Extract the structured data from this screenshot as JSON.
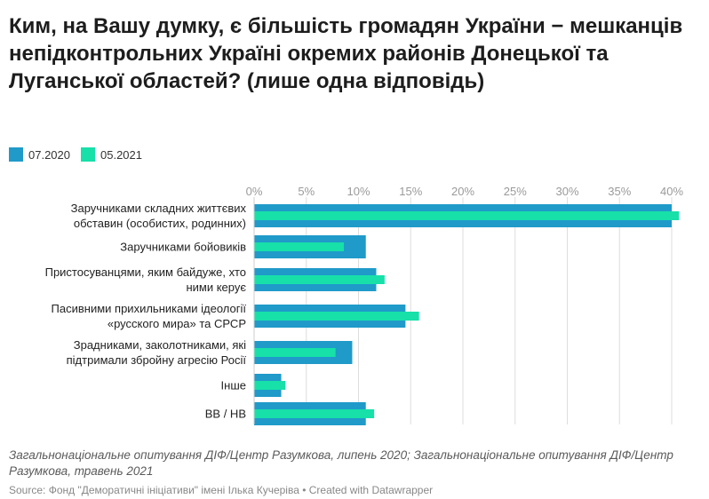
{
  "colors": {
    "series1": "#1f9ac9",
    "series2": "#17e0a9",
    "grid": "#dddddd"
  },
  "footer": {
    "note": "Загальнонаціональне опитування ДІФ/Центр Разумкова, липень 2020; Загальнонаціональне опитування ДІФ/Центр Разумкова, травень 2021",
    "source": "Source: Фонд \"Деморатичні ініціативи\" імені Ілька Кучеріва • Created with Datawrapper"
  },
  "chart_data": {
    "type": "bar",
    "orientation": "horizontal",
    "title": "Ким, на Вашу думку, є більшість громадян України − мешканців непідконтрольних Україні окремих районів Донецької та Луганської областей? (лише одна відповідь)",
    "categories": [
      [
        "Заручниками складних життєвих",
        "обставин (особистих, родинних)"
      ],
      [
        "Заручниками бойовиків"
      ],
      [
        "Пристосуванцями, яким байдуже, хто",
        "ними керує"
      ],
      [
        "Пасивними прихильниками ідеології",
        "«русского мира» та СРСР"
      ],
      [
        "Зрадниками, заколотниками, які",
        "підтримали збройну агресію Росії"
      ],
      [
        "Інше"
      ],
      [
        "ВВ / НВ"
      ]
    ],
    "series": [
      {
        "name": "07.2020",
        "values": [
          40.0,
          10.7,
          11.7,
          14.5,
          9.4,
          2.6,
          10.7
        ]
      },
      {
        "name": "05.2021",
        "values": [
          40.7,
          8.6,
          12.5,
          15.8,
          7.8,
          3.0,
          11.5
        ]
      }
    ],
    "xlim": [
      0,
      40
    ],
    "ticks": [
      0,
      5,
      10,
      15,
      20,
      25,
      30,
      35,
      40
    ],
    "tick_labels": [
      "0%",
      "5%",
      "10%",
      "15%",
      "20%",
      "25%",
      "30%",
      "35%",
      "40%"
    ],
    "legend_position": "top-left",
    "grid": true
  }
}
